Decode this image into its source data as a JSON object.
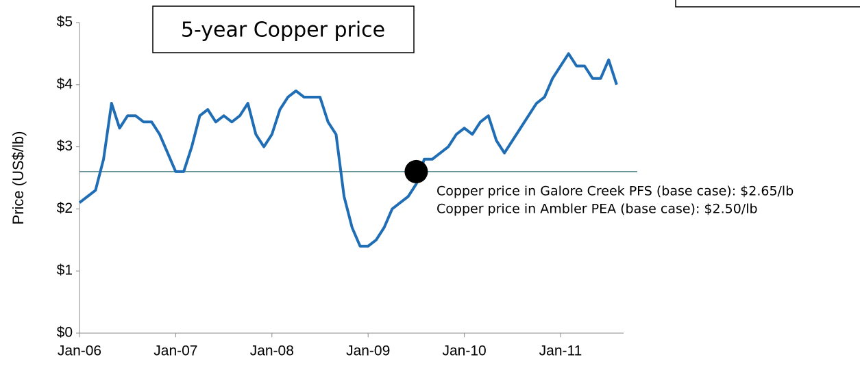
{
  "chart_data": {
    "type": "line",
    "title": "5-year Copper price",
    "y_label": "Price (US$/lb)",
    "x": [
      "Jan-06",
      "Feb-06",
      "Mar-06",
      "Apr-06",
      "May-06",
      "Jun-06",
      "Jul-06",
      "Aug-06",
      "Sep-06",
      "Oct-06",
      "Nov-06",
      "Dec-06",
      "Jan-07",
      "Feb-07",
      "Mar-07",
      "Apr-07",
      "May-07",
      "Jun-07",
      "Jul-07",
      "Aug-07",
      "Sep-07",
      "Oct-07",
      "Nov-07",
      "Dec-07",
      "Jan-08",
      "Feb-08",
      "Mar-08",
      "Apr-08",
      "May-08",
      "Jun-08",
      "Jul-08",
      "Aug-08",
      "Sep-08",
      "Oct-08",
      "Nov-08",
      "Dec-08",
      "Jan-09",
      "Feb-09",
      "Mar-09",
      "Apr-09",
      "May-09",
      "Jun-09",
      "Jul-09",
      "Aug-09",
      "Sep-09",
      "Oct-09",
      "Nov-09",
      "Dec-09",
      "Jan-10",
      "Feb-10",
      "Mar-10",
      "Apr-10",
      "May-10",
      "Jun-10",
      "Jul-10",
      "Aug-10",
      "Sep-10",
      "Oct-10",
      "Nov-10",
      "Dec-10",
      "Jan-11",
      "Feb-11",
      "Mar-11",
      "Apr-11",
      "May-11",
      "Jun-11",
      "Jul-11",
      "Aug-11"
    ],
    "series": [
      {
        "name": "Copper price",
        "color": "#1f6db5",
        "values": [
          2.1,
          2.2,
          2.3,
          2.8,
          3.7,
          3.3,
          3.5,
          3.5,
          3.4,
          3.4,
          3.2,
          2.9,
          2.6,
          2.6,
          3.0,
          3.5,
          3.6,
          3.4,
          3.5,
          3.4,
          3.5,
          3.7,
          3.2,
          3.0,
          3.2,
          3.6,
          3.8,
          3.9,
          3.8,
          3.8,
          3.8,
          3.4,
          3.2,
          2.2,
          1.7,
          1.4,
          1.4,
          1.5,
          1.7,
          2.0,
          2.1,
          2.2,
          2.4,
          2.8,
          2.8,
          2.9,
          3.0,
          3.2,
          3.3,
          3.2,
          3.4,
          3.5,
          3.1,
          2.9,
          3.1,
          3.3,
          3.5,
          3.7,
          3.8,
          4.1,
          4.3,
          4.5,
          4.3,
          4.3,
          4.1,
          4.1,
          4.4,
          4.0
        ]
      }
    ],
    "xticks": [
      "Jan-06",
      "Jan-07",
      "Jan-08",
      "Jan-09",
      "Jan-10",
      "Jan-11"
    ],
    "ylim": [
      0,
      5
    ],
    "yticks": [
      {
        "value": 0,
        "label": "$0"
      },
      {
        "value": 1,
        "label": "$1"
      },
      {
        "value": 2,
        "label": "$2"
      },
      {
        "value": 3,
        "label": "$3"
      },
      {
        "value": 4,
        "label": "$4"
      },
      {
        "value": 5,
        "label": "$5"
      }
    ],
    "reference_line": {
      "value": 2.6,
      "color": "#4a7f86"
    },
    "marker": {
      "x": "Jul-09",
      "value": 2.6
    },
    "annotations": [
      "Copper price in Galore Creek PFS (base case): $2.65/lb",
      "Copper price in Ambler PEA (base case): $2.50/lb"
    ]
  }
}
